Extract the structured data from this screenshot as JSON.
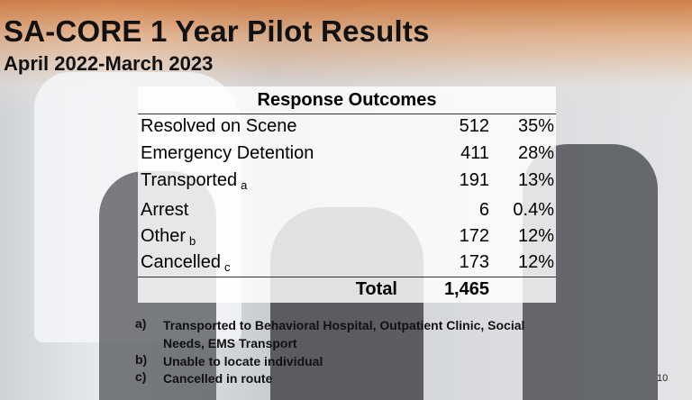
{
  "title": "SA-CORE 1 Year Pilot Results",
  "subtitle": "April 2022-March 2023",
  "table": {
    "header": "Response Outcomes",
    "rows": [
      {
        "label": "Resolved on Scene",
        "count": 512,
        "percent": "35%"
      },
      {
        "label": "Emergency Detention",
        "count": 411,
        "percent": "28%"
      },
      {
        "label": "Transported",
        "note": "a",
        "count": 191,
        "percent": "13%"
      },
      {
        "label": "Arrest",
        "count": 6,
        "percent": "0.4%"
      },
      {
        "label": "Other",
        "note": "b",
        "count": 172,
        "percent": "12%"
      },
      {
        "label": "Cancelled",
        "note": "c",
        "count": 173,
        "percent": "12%"
      }
    ],
    "total": {
      "label": "Total",
      "count": "1,465"
    }
  },
  "footnotes": [
    {
      "marker": "a)",
      "text": "Transported to Behavioral Hospital, Outpatient Clinic, Social Needs, EMS Transport"
    },
    {
      "marker": "b)",
      "text": "Unable to locate individual"
    },
    {
      "marker": "c)",
      "text": "Cancelled in route"
    }
  ],
  "page_number": "10"
}
